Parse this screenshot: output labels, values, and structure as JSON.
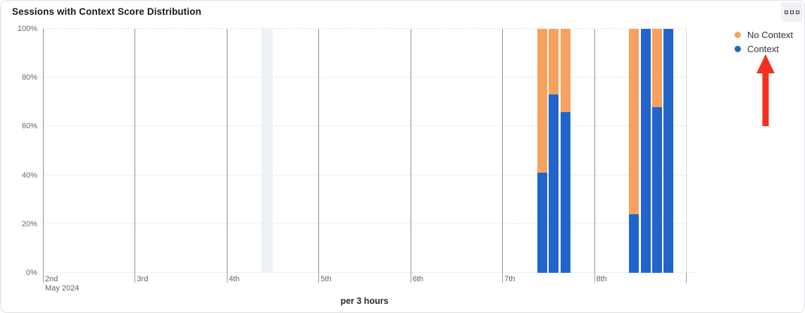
{
  "card": {
    "title": "Sessions with Context Score Distribution",
    "menu_button": {
      "icon": "triple-square-menu-icon"
    }
  },
  "legend": {
    "position": "top-right",
    "items": [
      {
        "label": "No Context",
        "color": "#F7A15E"
      },
      {
        "label": "Context",
        "color": "#2165CB"
      }
    ]
  },
  "annotation": {
    "type": "red-arrow-up",
    "points_at": "Context legend item",
    "color": "#F3301E"
  },
  "chart_data": {
    "type": "bar",
    "stacked": true,
    "normalized": "percent",
    "title": "Sessions with Context Score Distribution",
    "xlabel": "per 3 hours",
    "ylabel": "",
    "ylim": [
      0,
      100
    ],
    "y_ticks": [
      "0%",
      "20%",
      "40%",
      "60%",
      "80%",
      "100%"
    ],
    "x_ticks": [
      "2nd",
      "3rd",
      "4th",
      "5th",
      "6th",
      "7th",
      "8th"
    ],
    "x_month_label": "May 2024",
    "x_range_days": 7,
    "bucket_hours": 3,
    "grid": {
      "horizontal": "dashed",
      "vertical_day_lines": true
    },
    "legend_position": "top-right",
    "series": [
      {
        "name": "No Context",
        "color": "#F7A15E"
      },
      {
        "name": "Context",
        "color": "#2165CB"
      }
    ],
    "bars": [
      {
        "start": "2024-05-07T09:00",
        "context_pct": 41,
        "no_context_pct": 59
      },
      {
        "start": "2024-05-07T12:00",
        "context_pct": 73,
        "no_context_pct": 27
      },
      {
        "start": "2024-05-07T15:00",
        "context_pct": 66,
        "no_context_pct": 34
      },
      {
        "start": "2024-05-08T09:00",
        "context_pct": 24,
        "no_context_pct": 76
      },
      {
        "start": "2024-05-08T12:00",
        "context_pct": 100,
        "no_context_pct": 0
      },
      {
        "start": "2024-05-08T15:00",
        "context_pct": 68,
        "no_context_pct": 32
      },
      {
        "start": "2024-05-08T18:00",
        "context_pct": 100,
        "no_context_pct": 0
      }
    ],
    "highlighted_bucket": {
      "start": "2024-05-04T09:00"
    }
  },
  "colors": {
    "context_blue": "#2165CB",
    "no_context_orange": "#F7A15E",
    "arrow_red": "#F3301E",
    "day_line": "#8B9095",
    "end_line": "#D5D8DC",
    "dashed_grid": "#E3E6E9",
    "baseline": "#ECEEF0",
    "highlight_band": "#EEF2F6",
    "tick_text": "#5D646B"
  }
}
